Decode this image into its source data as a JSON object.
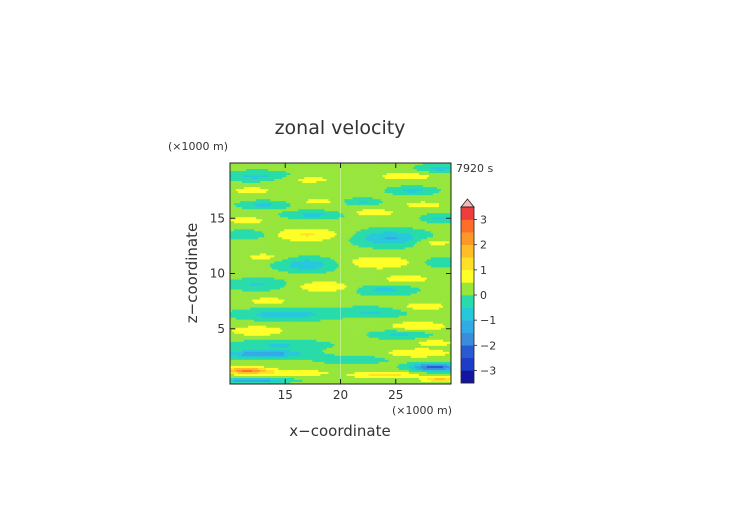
{
  "chart_data": {
    "type": "heatmap",
    "title": "zonal velocity",
    "time_label": "7920 s",
    "xlabel": "x−coordinate",
    "ylabel": "z−coordinate",
    "x_unit": "(×1000 m)",
    "y_unit": "(×1000 m)",
    "xlim": [
      10,
      30
    ],
    "ylim": [
      0,
      20
    ],
    "x_ticks": [
      "15",
      "20",
      "25"
    ],
    "y_ticks": [
      "5",
      "10",
      "15"
    ],
    "colorbar": {
      "levels": [
        -3.5,
        -3,
        -2.5,
        -2,
        -1.5,
        -1,
        -0.5,
        0,
        0.5,
        1,
        1.5,
        2,
        2.5,
        3,
        3.5
      ],
      "colors": [
        "#1414a0",
        "#1e3cc8",
        "#285ad2",
        "#3c8cdc",
        "#32aae6",
        "#28c8dc",
        "#28dcaa",
        "#96e63c",
        "#ffff28",
        "#ffe128",
        "#ffbe28",
        "#ff9628",
        "#ff6e28",
        "#f03c3c",
        "#ff8c8c",
        "#ffb4b4"
      ],
      "tick_labels": [
        "−3",
        "−2",
        "−1",
        "0",
        "1",
        "2",
        "3"
      ],
      "tick_values": [
        -3,
        -2,
        -1,
        0,
        1,
        2,
        3
      ],
      "extend": "max"
    },
    "field_background": 0.15,
    "field_features": [
      {
        "x": 12.5,
        "y": 18.8,
        "sx": 3.0,
        "sy": 0.45,
        "v": -0.8
      },
      {
        "x": 17.0,
        "y": 18.5,
        "sx": 3.0,
        "sy": 0.45,
        "v": 0.5
      },
      {
        "x": 26.0,
        "y": 18.8,
        "sx": 3.0,
        "sy": 0.45,
        "v": 0.6
      },
      {
        "x": 29.0,
        "y": 19.5,
        "sx": 2.0,
        "sy": 0.4,
        "v": -0.8
      },
      {
        "x": 12.0,
        "y": 17.5,
        "sx": 2.0,
        "sy": 0.35,
        "v": 0.6
      },
      {
        "x": 26.5,
        "y": 17.5,
        "sx": 2.0,
        "sy": 0.35,
        "v": -0.8
      },
      {
        "x": 13.0,
        "y": 16.2,
        "sx": 2.0,
        "sy": 0.35,
        "v": -0.8
      },
      {
        "x": 18.0,
        "y": 16.5,
        "sx": 1.5,
        "sy": 0.3,
        "v": 0.6
      },
      {
        "x": 22.0,
        "y": 16.5,
        "sx": 1.5,
        "sy": 0.3,
        "v": -0.7
      },
      {
        "x": 27.5,
        "y": 16.2,
        "sx": 2.0,
        "sy": 0.35,
        "v": 0.6
      },
      {
        "x": 17.5,
        "y": 15.3,
        "sx": 2.5,
        "sy": 0.35,
        "v": -0.8
      },
      {
        "x": 23.0,
        "y": 15.5,
        "sx": 2.0,
        "sy": 0.35,
        "v": 0.7
      },
      {
        "x": 11.5,
        "y": 14.8,
        "sx": 2.0,
        "sy": 0.35,
        "v": 0.6
      },
      {
        "x": 29.0,
        "y": 15.0,
        "sx": 1.5,
        "sy": 0.35,
        "v": -0.8
      },
      {
        "x": 17.0,
        "y": 13.5,
        "sx": 3.0,
        "sy": 0.6,
        "v": 0.9
      },
      {
        "x": 24.5,
        "y": 13.2,
        "sx": 3.0,
        "sy": 0.7,
        "v": -1.2
      },
      {
        "x": 11.5,
        "y": 13.5,
        "sx": 2.0,
        "sy": 0.4,
        "v": -0.6
      },
      {
        "x": 28.5,
        "y": 12.8,
        "sx": 2.0,
        "sy": 0.4,
        "v": 0.6
      },
      {
        "x": 17.0,
        "y": 10.8,
        "sx": 2.5,
        "sy": 0.6,
        "v": -1.0
      },
      {
        "x": 23.5,
        "y": 11.0,
        "sx": 3.0,
        "sy": 0.6,
        "v": 0.8
      },
      {
        "x": 13.0,
        "y": 11.5,
        "sx": 2.0,
        "sy": 0.4,
        "v": 0.5
      },
      {
        "x": 29.0,
        "y": 11.0,
        "sx": 1.5,
        "sy": 0.4,
        "v": -0.6
      },
      {
        "x": 12.5,
        "y": 9.0,
        "sx": 2.5,
        "sy": 0.5,
        "v": -0.7
      },
      {
        "x": 18.5,
        "y": 8.8,
        "sx": 2.5,
        "sy": 0.5,
        "v": 0.8
      },
      {
        "x": 26.0,
        "y": 9.5,
        "sx": 2.5,
        "sy": 0.45,
        "v": 0.6
      },
      {
        "x": 24.0,
        "y": 8.5,
        "sx": 2.5,
        "sy": 0.45,
        "v": -0.8
      },
      {
        "x": 13.5,
        "y": 7.5,
        "sx": 2.5,
        "sy": 0.45,
        "v": 0.5
      },
      {
        "x": 27.5,
        "y": 7.0,
        "sx": 2.5,
        "sy": 0.45,
        "v": 0.6
      },
      {
        "x": 15.0,
        "y": 6.3,
        "sx": 4.0,
        "sy": 0.5,
        "v": -1.0
      },
      {
        "x": 23.0,
        "y": 6.5,
        "sx": 3.0,
        "sy": 0.45,
        "v": -0.7
      },
      {
        "x": 12.5,
        "y": 4.8,
        "sx": 2.5,
        "sy": 0.45,
        "v": 0.8
      },
      {
        "x": 27.0,
        "y": 5.2,
        "sx": 3.0,
        "sy": 0.5,
        "v": 0.7
      },
      {
        "x": 25.5,
        "y": 4.5,
        "sx": 2.5,
        "sy": 0.4,
        "v": -0.8
      },
      {
        "x": 14.5,
        "y": 3.5,
        "sx": 4.0,
        "sy": 0.45,
        "v": -0.7
      },
      {
        "x": 28.5,
        "y": 3.7,
        "sx": 2.0,
        "sy": 0.35,
        "v": 0.6
      },
      {
        "x": 13.0,
        "y": 2.7,
        "sx": 3.5,
        "sy": 0.35,
        "v": -1.6
      },
      {
        "x": 27.0,
        "y": 2.8,
        "sx": 3.0,
        "sy": 0.4,
        "v": 0.8
      },
      {
        "x": 21.0,
        "y": 2.2,
        "sx": 3.0,
        "sy": 0.35,
        "v": -0.6
      },
      {
        "x": 28.5,
        "y": 1.5,
        "sx": 2.0,
        "sy": 0.35,
        "v": -2.5
      },
      {
        "x": 11.5,
        "y": 1.2,
        "sx": 2.0,
        "sy": 0.3,
        "v": 2.4
      },
      {
        "x": 16.0,
        "y": 1.0,
        "sx": 3.0,
        "sy": 0.3,
        "v": 0.8
      },
      {
        "x": 24.0,
        "y": 0.8,
        "sx": 3.0,
        "sy": 0.3,
        "v": 1.1
      },
      {
        "x": 29.0,
        "y": 0.4,
        "sx": 1.5,
        "sy": 0.25,
        "v": 1.5
      },
      {
        "x": 12.0,
        "y": 0.3,
        "sx": 3.0,
        "sy": 0.2,
        "v": -1.6
      }
    ]
  }
}
